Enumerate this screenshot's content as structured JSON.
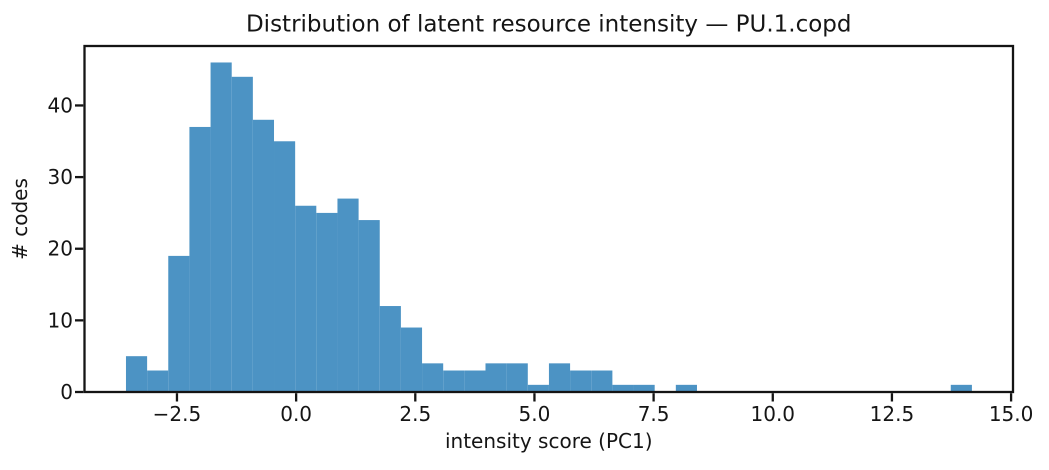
{
  "chart_data": {
    "type": "bar",
    "subtype": "histogram",
    "title": "Distribution of latent resource intensity — PU.1.copd",
    "xlabel": "intensity score (PC1)",
    "ylabel": "# codes",
    "bar_color": "#4C93C4",
    "axis_color": "#141414",
    "bin_start": -3.57,
    "bin_width": 0.4437,
    "counts": [
      5,
      3,
      19,
      37,
      46,
      44,
      38,
      35,
      26,
      25,
      27,
      24,
      12,
      9,
      4,
      3,
      3,
      4,
      4,
      1,
      4,
      3,
      3,
      1,
      1,
      0,
      1,
      0,
      0,
      0,
      0,
      0,
      0,
      0,
      0,
      0,
      0,
      0,
      0,
      1
    ],
    "xlim": [
      -4.44,
      15.04
    ],
    "ylim": [
      0,
      48.3
    ],
    "xticks": [
      -2.5,
      0.0,
      2.5,
      5.0,
      7.5,
      10.0,
      12.5,
      15.0
    ],
    "xtick_labels": [
      "−2.5",
      "0.0",
      "2.5",
      "5.0",
      "7.5",
      "10.0",
      "12.5",
      "15.0"
    ],
    "yticks": [
      0,
      10,
      20,
      30,
      40
    ],
    "ytick_labels": [
      "0",
      "10",
      "20",
      "30",
      "40"
    ],
    "grid": false,
    "legend": null
  }
}
